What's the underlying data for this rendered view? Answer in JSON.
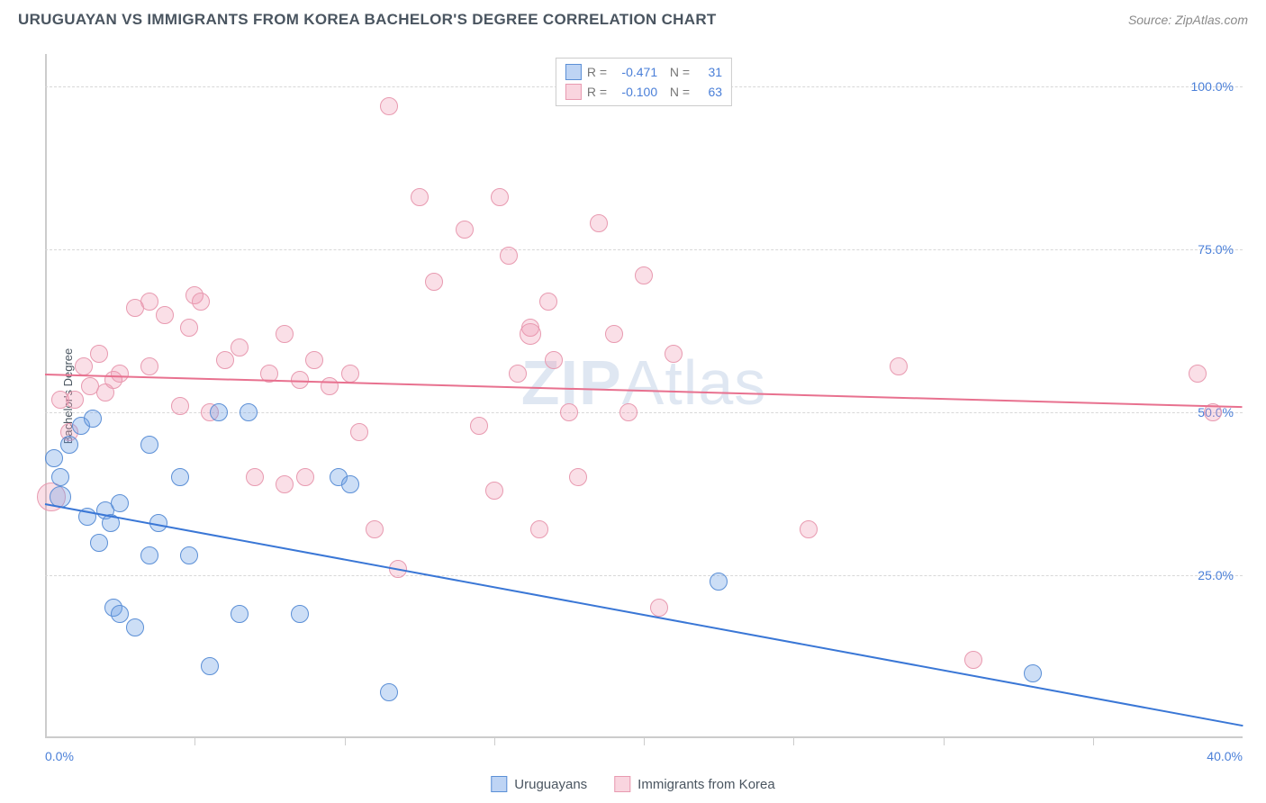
{
  "header": {
    "title": "URUGUAYAN VS IMMIGRANTS FROM KOREA BACHELOR'S DEGREE CORRELATION CHART",
    "source_label": "Source:",
    "source_value": "ZipAtlas.com"
  },
  "chart": {
    "type": "scatter",
    "y_axis_title": "Bachelor's Degree",
    "xlim": [
      0,
      40
    ],
    "ylim": [
      0,
      105
    ],
    "x_ticks_labeled": [
      {
        "value": 0,
        "label": "0.0%"
      },
      {
        "value": 40,
        "label": "40.0%"
      }
    ],
    "x_ticks_minor": [
      5,
      10,
      15,
      20,
      25,
      30,
      35
    ],
    "y_ticks": [
      {
        "value": 25,
        "label": "25.0%"
      },
      {
        "value": 50,
        "label": "50.0%"
      },
      {
        "value": 75,
        "label": "75.0%"
      },
      {
        "value": 100,
        "label": "100.0%"
      }
    ],
    "grid_color": "#d8d8d8",
    "background_color": "#ffffff",
    "watermark_text_bold": "ZIP",
    "watermark_text_rest": "Atlas",
    "series": [
      {
        "name": "Uruguayans",
        "color_fill": "rgba(110,160,230,0.35)",
        "color_border": "#5b8fd6",
        "trend_color": "#3a77d6",
        "marker_radius": 10,
        "stats": {
          "R": "-0.471",
          "N": "31"
        },
        "trend": {
          "x1": 0,
          "y1": 36,
          "x2": 40,
          "y2": 2
        },
        "points": [
          {
            "x": 0.3,
            "y": 43,
            "r": 10
          },
          {
            "x": 0.5,
            "y": 40,
            "r": 10
          },
          {
            "x": 0.8,
            "y": 45,
            "r": 10
          },
          {
            "x": 0.5,
            "y": 37,
            "r": 12
          },
          {
            "x": 1.2,
            "y": 48,
            "r": 10
          },
          {
            "x": 1.4,
            "y": 34,
            "r": 10
          },
          {
            "x": 1.6,
            "y": 49,
            "r": 10
          },
          {
            "x": 2.0,
            "y": 35,
            "r": 10
          },
          {
            "x": 1.8,
            "y": 30,
            "r": 10
          },
          {
            "x": 2.2,
            "y": 33,
            "r": 10
          },
          {
            "x": 2.5,
            "y": 36,
            "r": 10
          },
          {
            "x": 2.3,
            "y": 20,
            "r": 10
          },
          {
            "x": 2.5,
            "y": 19,
            "r": 10
          },
          {
            "x": 3.0,
            "y": 17,
            "r": 10
          },
          {
            "x": 3.5,
            "y": 28,
            "r": 10
          },
          {
            "x": 3.5,
            "y": 45,
            "r": 10
          },
          {
            "x": 3.8,
            "y": 33,
            "r": 10
          },
          {
            "x": 4.5,
            "y": 40,
            "r": 10
          },
          {
            "x": 4.8,
            "y": 28,
            "r": 10
          },
          {
            "x": 5.5,
            "y": 11,
            "r": 10
          },
          {
            "x": 5.8,
            "y": 50,
            "r": 10
          },
          {
            "x": 6.5,
            "y": 19,
            "r": 10
          },
          {
            "x": 6.8,
            "y": 50,
            "r": 10
          },
          {
            "x": 8.5,
            "y": 19,
            "r": 10
          },
          {
            "x": 9.8,
            "y": 40,
            "r": 10
          },
          {
            "x": 10.2,
            "y": 39,
            "r": 10
          },
          {
            "x": 11.5,
            "y": 7,
            "r": 10
          },
          {
            "x": 22.5,
            "y": 24,
            "r": 10
          },
          {
            "x": 33.0,
            "y": 10,
            "r": 10
          }
        ]
      },
      {
        "name": "Immigrants from Korea",
        "color_fill": "rgba(240,150,175,0.3)",
        "color_border": "#e89ab0",
        "trend_color": "#e8718f",
        "marker_radius": 10,
        "stats": {
          "R": "-0.100",
          "N": "63"
        },
        "trend": {
          "x1": 0,
          "y1": 56,
          "x2": 40,
          "y2": 51
        },
        "points": [
          {
            "x": 0.2,
            "y": 37,
            "r": 16
          },
          {
            "x": 0.5,
            "y": 52,
            "r": 10
          },
          {
            "x": 0.8,
            "y": 47,
            "r": 10
          },
          {
            "x": 1.0,
            "y": 52,
            "r": 10
          },
          {
            "x": 1.3,
            "y": 57,
            "r": 10
          },
          {
            "x": 1.5,
            "y": 54,
            "r": 10
          },
          {
            "x": 1.8,
            "y": 59,
            "r": 10
          },
          {
            "x": 2.0,
            "y": 53,
            "r": 10
          },
          {
            "x": 2.3,
            "y": 55,
            "r": 10
          },
          {
            "x": 2.5,
            "y": 56,
            "r": 10
          },
          {
            "x": 3.0,
            "y": 66,
            "r": 10
          },
          {
            "x": 3.5,
            "y": 67,
            "r": 10
          },
          {
            "x": 3.5,
            "y": 57,
            "r": 10
          },
          {
            "x": 4.0,
            "y": 65,
            "r": 10
          },
          {
            "x": 4.5,
            "y": 51,
            "r": 10
          },
          {
            "x": 4.8,
            "y": 63,
            "r": 10
          },
          {
            "x": 5.0,
            "y": 68,
            "r": 10
          },
          {
            "x": 5.2,
            "y": 67,
            "r": 10
          },
          {
            "x": 5.5,
            "y": 50,
            "r": 10
          },
          {
            "x": 6.0,
            "y": 58,
            "r": 10
          },
          {
            "x": 6.5,
            "y": 60,
            "r": 10
          },
          {
            "x": 7.0,
            "y": 40,
            "r": 10
          },
          {
            "x": 7.5,
            "y": 56,
            "r": 10
          },
          {
            "x": 8.0,
            "y": 62,
            "r": 10
          },
          {
            "x": 8.0,
            "y": 39,
            "r": 10
          },
          {
            "x": 8.5,
            "y": 55,
            "r": 10
          },
          {
            "x": 8.7,
            "y": 40,
            "r": 10
          },
          {
            "x": 9.0,
            "y": 58,
            "r": 10
          },
          {
            "x": 9.5,
            "y": 54,
            "r": 10
          },
          {
            "x": 10.2,
            "y": 56,
            "r": 10
          },
          {
            "x": 10.5,
            "y": 47,
            "r": 10
          },
          {
            "x": 11.0,
            "y": 32,
            "r": 10
          },
          {
            "x": 11.5,
            "y": 97,
            "r": 10
          },
          {
            "x": 11.8,
            "y": 26,
            "r": 10
          },
          {
            "x": 12.5,
            "y": 83,
            "r": 10
          },
          {
            "x": 13.0,
            "y": 70,
            "r": 10
          },
          {
            "x": 14.0,
            "y": 78,
            "r": 10
          },
          {
            "x": 14.5,
            "y": 48,
            "r": 10
          },
          {
            "x": 15.0,
            "y": 38,
            "r": 10
          },
          {
            "x": 15.2,
            "y": 83,
            "r": 10
          },
          {
            "x": 15.5,
            "y": 74,
            "r": 10
          },
          {
            "x": 15.8,
            "y": 56,
            "r": 10
          },
          {
            "x": 16.2,
            "y": 63,
            "r": 10
          },
          {
            "x": 16.2,
            "y": 62,
            "r": 12
          },
          {
            "x": 16.5,
            "y": 32,
            "r": 10
          },
          {
            "x": 16.8,
            "y": 67,
            "r": 10
          },
          {
            "x": 17.0,
            "y": 58,
            "r": 10
          },
          {
            "x": 17.5,
            "y": 50,
            "r": 10
          },
          {
            "x": 17.8,
            "y": 40,
            "r": 10
          },
          {
            "x": 18.5,
            "y": 79,
            "r": 10
          },
          {
            "x": 19.5,
            "y": 50,
            "r": 10
          },
          {
            "x": 19.0,
            "y": 62,
            "r": 10
          },
          {
            "x": 20.0,
            "y": 71,
            "r": 10
          },
          {
            "x": 20.5,
            "y": 20,
            "r": 10
          },
          {
            "x": 21.0,
            "y": 59,
            "r": 10
          },
          {
            "x": 25.5,
            "y": 32,
            "r": 10
          },
          {
            "x": 28.5,
            "y": 57,
            "r": 10
          },
          {
            "x": 31.0,
            "y": 12,
            "r": 10
          },
          {
            "x": 38.5,
            "y": 56,
            "r": 10
          },
          {
            "x": 39.0,
            "y": 50,
            "r": 10
          }
        ]
      }
    ],
    "legend_labels": [
      "Uruguayans",
      "Immigrants from Korea"
    ]
  }
}
